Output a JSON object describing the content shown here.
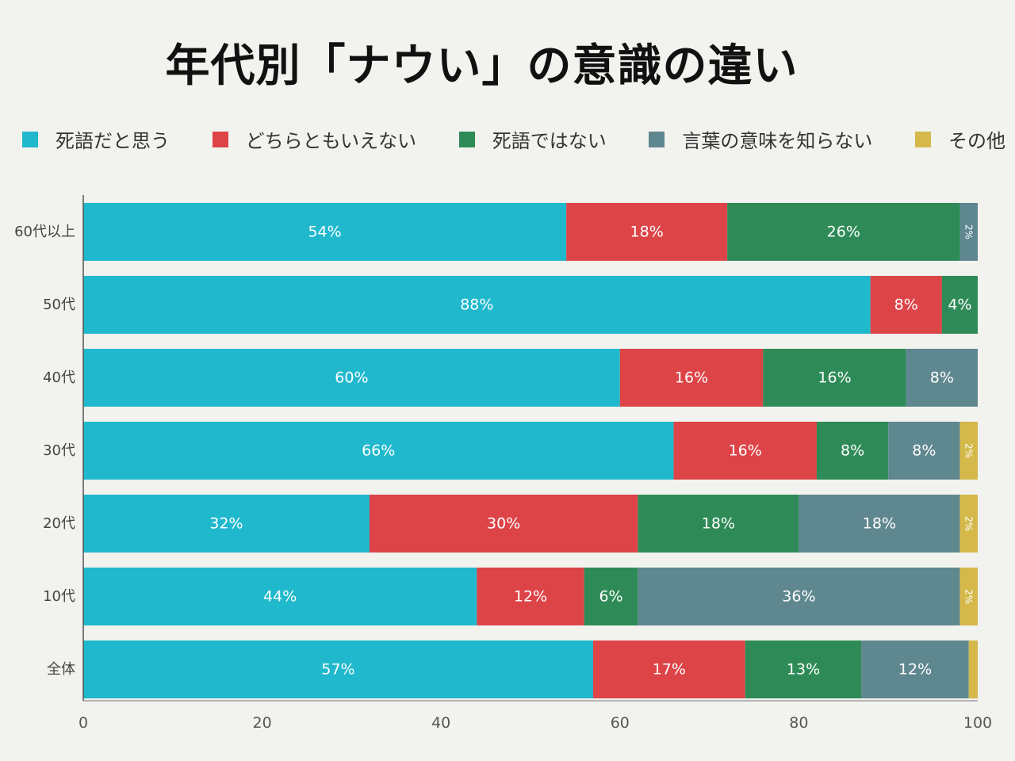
{
  "chart_data": {
    "type": "bar",
    "orientation": "horizontal",
    "stacked": true,
    "title": "年代別「ナウい」の意識の違い",
    "categories": [
      "60代以上",
      "50代",
      "40代",
      "30代",
      "20代",
      "10代",
      "全体"
    ],
    "series": [
      {
        "name": "死語だと思う",
        "color": "#20b8cd",
        "values": [
          54,
          88,
          60,
          66,
          32,
          44,
          57
        ],
        "labels": [
          "54%",
          "88%",
          "60%",
          "66%",
          "32%",
          "44%",
          "57%"
        ]
      },
      {
        "name": "どちらともいえない",
        "color": "#dc4448",
        "values": [
          18,
          8,
          16,
          16,
          30,
          12,
          17
        ],
        "labels": [
          "18%",
          "8%",
          "16%",
          "16%",
          "30%",
          "12%",
          "17%"
        ]
      },
      {
        "name": "死語ではない",
        "color": "#2e8b57",
        "values": [
          26,
          4,
          16,
          8,
          18,
          6,
          13
        ],
        "labels": [
          "26%",
          "4%",
          "16%",
          "8%",
          "18%",
          "6%",
          "13%"
        ]
      },
      {
        "name": "言葉の意味を知らない",
        "color": "#5f8790",
        "values": [
          2,
          0,
          8,
          8,
          18,
          36,
          12
        ],
        "labels": [
          "2%",
          "",
          "8%",
          "8%",
          "18%",
          "36%",
          "12%"
        ]
      },
      {
        "name": "その他",
        "color": "#d4b94a",
        "values": [
          0,
          0,
          0,
          2,
          2,
          2,
          1
        ],
        "labels": [
          "",
          "",
          "",
          "2%",
          "2%",
          "2%",
          ""
        ]
      }
    ],
    "xlim": [
      0,
      100
    ],
    "xticks": [
      0,
      20,
      40,
      60,
      80,
      100
    ],
    "grid": false,
    "legend_position": "top"
  }
}
